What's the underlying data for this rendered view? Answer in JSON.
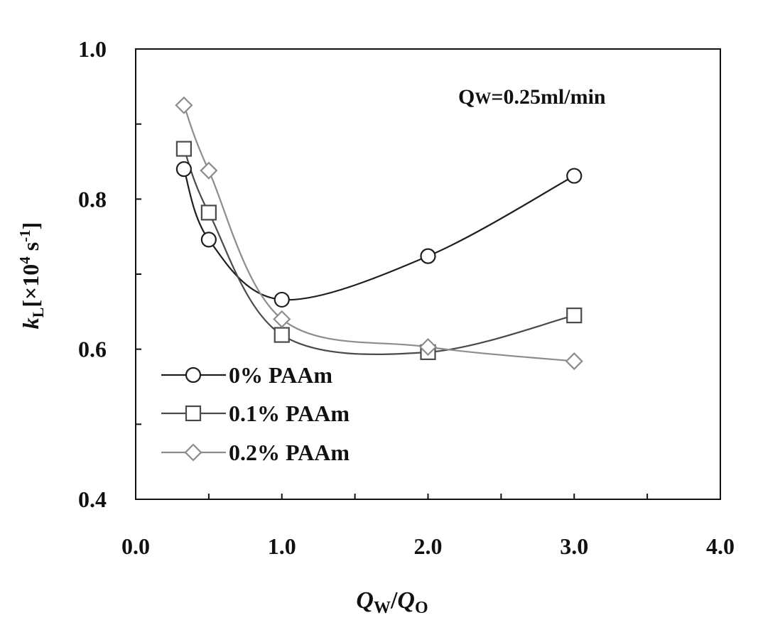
{
  "chart_data": {
    "type": "line",
    "title": "",
    "annotation": {
      "prefix": "Q",
      "subscript": "W",
      "suffix": "=0.25ml/min"
    },
    "xlabel": {
      "a": "Q",
      "a_sub": "W",
      "sep": "/",
      "b": "Q",
      "b_sub": "O"
    },
    "ylabel": {
      "main": "k",
      "main_sub": "L",
      "rest": "[×10",
      "exp": "4",
      "unit": " s",
      "unit_exp": "-1"
    },
    "xlim": [
      0.0,
      4.0
    ],
    "ylim": [
      0.4,
      1.0
    ],
    "x_ticks": [
      0.0,
      1.0,
      2.0,
      3.0,
      4.0
    ],
    "x_tick_labels": [
      "0.0",
      "1.0",
      "2.0",
      "3.0",
      "4.0"
    ],
    "y_ticks": [
      0.4,
      0.6,
      0.8,
      1.0
    ],
    "y_tick_labels": [
      "0.4",
      "0.6",
      "0.8",
      "1.0"
    ],
    "x_minor_step": 0.5,
    "y_minor_step": 0.1,
    "grid": false,
    "legend_position": "bottom-left",
    "series": [
      {
        "name": "0% PAAm",
        "marker": "circle",
        "color": "#1e1e1e",
        "x": [
          0.33,
          0.5,
          1.0,
          2.0,
          3.0
        ],
        "y": [
          0.84,
          0.746,
          0.666,
          0.724,
          0.831
        ]
      },
      {
        "name": "0.1% PAAm",
        "marker": "square",
        "color": "#4a4a4a",
        "x": [
          0.33,
          0.5,
          1.0,
          2.0,
          3.0
        ],
        "y": [
          0.867,
          0.782,
          0.619,
          0.596,
          0.645
        ]
      },
      {
        "name": "0.2% PAAm",
        "marker": "diamond",
        "color": "#8c8c8c",
        "x": [
          0.33,
          0.5,
          1.0,
          2.0,
          3.0
        ],
        "y": [
          0.925,
          0.838,
          0.64,
          0.603,
          0.584
        ]
      }
    ]
  }
}
